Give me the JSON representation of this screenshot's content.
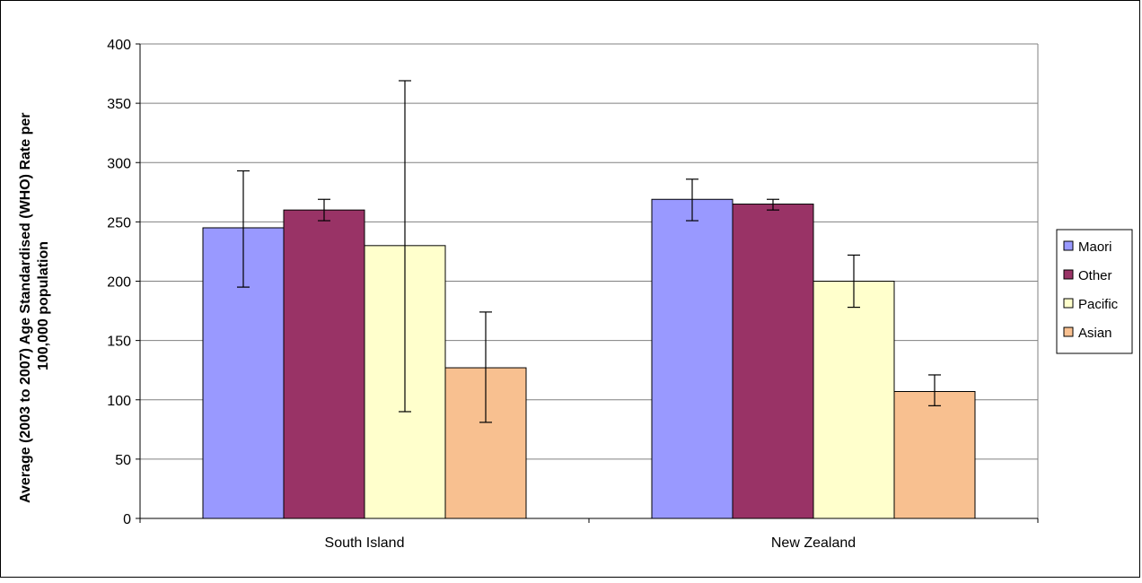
{
  "chart_data": {
    "type": "bar",
    "title": "",
    "xlabel": "",
    "ylabel_lines": [
      "Average (2003 to 2007) Age Standardised (WHO) Rate per",
      "100,000 population"
    ],
    "ylim": [
      0,
      400
    ],
    "yticks": [
      0,
      50,
      100,
      150,
      200,
      250,
      300,
      350,
      400
    ],
    "grid": true,
    "legend_position": "right",
    "categories": [
      "South Island",
      "New Zealand"
    ],
    "series": [
      {
        "name": "Maori",
        "color": "#9999FF",
        "values": [
          245,
          269
        ],
        "error_low": [
          195,
          251
        ],
        "error_high": [
          293,
          286
        ]
      },
      {
        "name": "Other",
        "color": "#993366",
        "values": [
          260,
          265
        ],
        "error_low": [
          251,
          260
        ],
        "error_high": [
          269,
          269
        ]
      },
      {
        "name": "Pacific",
        "color": "#FFFFCC",
        "values": [
          230,
          200
        ],
        "error_low": [
          90,
          178
        ],
        "error_high": [
          369,
          222
        ]
      },
      {
        "name": "Asian",
        "color": "#F8C090",
        "values": [
          127,
          107
        ],
        "error_low": [
          81,
          95
        ],
        "error_high": [
          174,
          121
        ]
      }
    ]
  }
}
